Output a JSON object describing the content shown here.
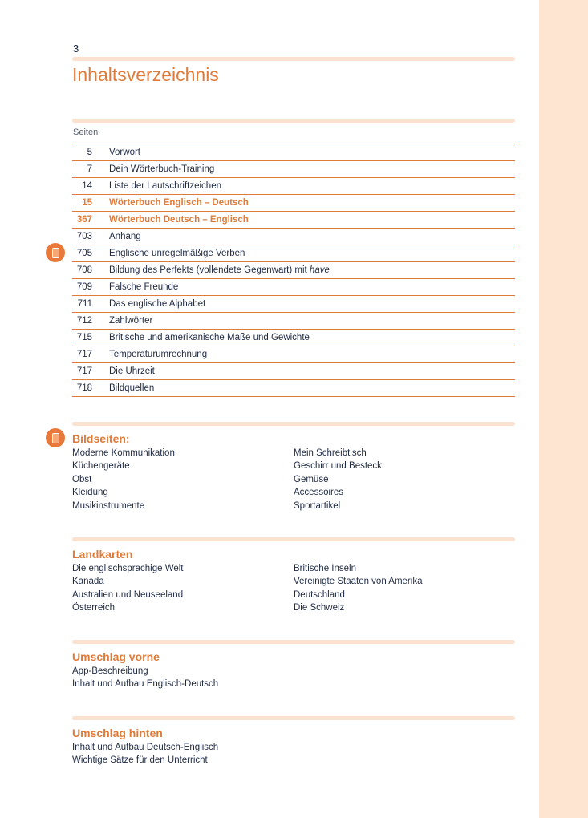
{
  "page_number": "3",
  "title": "Inhaltsverzeichnis",
  "seiten_label": "Seiten",
  "colors": {
    "accent": "#e07b39",
    "bar": "#fbe2d0",
    "strip": "#fde5d2"
  },
  "toc": [
    {
      "page": "5",
      "label": "Vorwort"
    },
    {
      "page": "7",
      "label": "Dein Wörterbuch-Training"
    },
    {
      "page": "14",
      "label": "Liste der Lautschriftzeichen"
    },
    {
      "page": "15",
      "label": "Wörterbuch Englisch – Deutsch",
      "highlight": true
    },
    {
      "page": "367",
      "label": "Wörterbuch Deutsch – Englisch",
      "highlight": true
    },
    {
      "page": "703",
      "label": "Anhang"
    },
    {
      "page": "705",
      "label": "Englische unregelmäßige Verben",
      "icon": "mobile-app-icon"
    },
    {
      "page": "708",
      "label": "Bildung des Perfekts (vollendete Gegenwart) mit ",
      "italic": "have"
    },
    {
      "page": "709",
      "label": "Falsche Freunde"
    },
    {
      "page": "711",
      "label": "Das englische Alphabet"
    },
    {
      "page": "712",
      "label": "Zahlwörter"
    },
    {
      "page": "715",
      "label": "Britische und amerikanische Maße und Gewichte"
    },
    {
      "page": "717",
      "label": "Temperaturumrechnung"
    },
    {
      "page": "717",
      "label": "Die Uhrzeit"
    },
    {
      "page": "718",
      "label": "Bildquellen"
    }
  ],
  "sections": [
    {
      "title": "Bildseiten:",
      "icon": "mobile-app-icon",
      "left": [
        "Moderne Kommunikation",
        "Küchengeräte",
        "Obst",
        "Kleidung",
        "Musikinstrumente"
      ],
      "right": [
        "Mein Schreibtisch",
        "Geschirr und Besteck",
        "Gemüse",
        "Accessoires",
        "Sportartikel"
      ]
    },
    {
      "title": "Landkarten",
      "left": [
        "Die englischsprachige Welt",
        "Kanada",
        "Australien und Neuseeland",
        "Österreich"
      ],
      "right": [
        "Britische Inseln",
        "Vereinigte Staaten von Amerika",
        "Deutschland",
        "Die Schweiz"
      ]
    },
    {
      "title": "Umschlag vorne",
      "left": [
        "App-Beschreibung",
        "Inhalt und Aufbau Englisch-Deutsch"
      ],
      "right": []
    },
    {
      "title": "Umschlag hinten",
      "left": [
        "Inhalt und Aufbau Deutsch-Englisch",
        "Wichtige Sätze für den Unterricht"
      ],
      "right": []
    }
  ]
}
